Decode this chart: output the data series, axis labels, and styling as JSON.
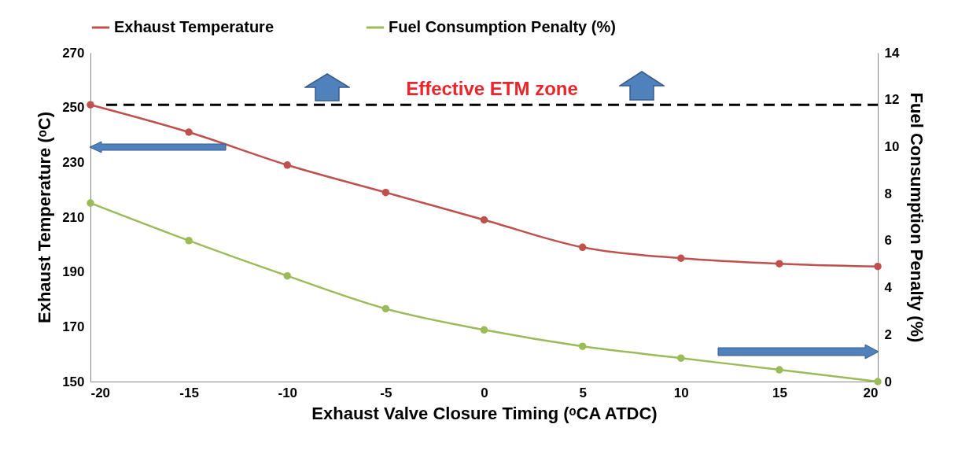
{
  "chart_data": {
    "type": "line",
    "x": [
      -20,
      -15,
      -10,
      -5,
      0,
      5,
      10,
      15,
      20
    ],
    "xlabel": "Exhaust Valve Closure Timing (ᵒCA ATDC)",
    "ylabel": "Exhaust Temperature (ᵒC)",
    "y2label": "Fuel Consumption Penalty (%)",
    "series": [
      {
        "name": "Exhaust Temperature",
        "color": "#c0504d",
        "values": [
          251,
          241,
          229,
          219,
          209,
          199,
          195,
          193,
          192
        ]
      },
      {
        "name": "Fuel Consumption Penalty (%)",
        "color": "#9bbb59",
        "axis": "y2",
        "values": [
          7.6,
          6.0,
          4.5,
          3.1,
          2.2,
          1.5,
          1.0,
          0.5,
          0
        ]
      }
    ],
    "xlim": [
      -20,
      20
    ],
    "xticks": [
      -20,
      -15,
      -10,
      -5,
      0,
      5,
      10,
      15,
      20
    ],
    "ylim": [
      150,
      270
    ],
    "yticks": [
      150,
      170,
      190,
      210,
      230,
      250,
      270
    ],
    "y2lim": [
      0,
      14
    ],
    "y2ticks": [
      0,
      2,
      4,
      6,
      8,
      10,
      12,
      14
    ],
    "ref_lines": [
      {
        "axis": "y",
        "value": 251,
        "label": "Effective ETM zone",
        "color": "#000000",
        "line_style": "dashed"
      }
    ],
    "marker": "circle",
    "legend": "top",
    "grid": false
  }
}
